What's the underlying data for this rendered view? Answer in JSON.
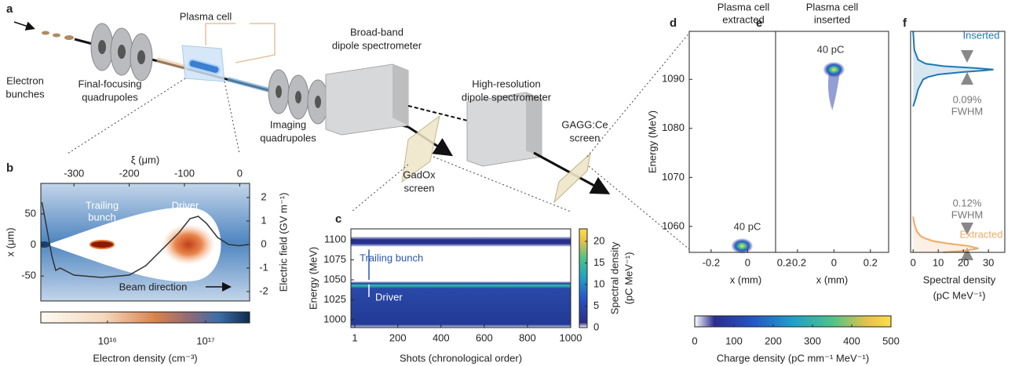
{
  "diagram": {
    "label": "a",
    "components": [
      {
        "label": [
          "Electron",
          "bunches"
        ]
      },
      {
        "label": [
          "Final-focusing",
          "quadrupoles"
        ]
      },
      {
        "label": [
          "Plasma cell"
        ]
      },
      {
        "label": [
          "Imaging",
          "quadrupoles"
        ]
      },
      {
        "label": [
          "Broad-band",
          "dipole spectrometer"
        ]
      },
      {
        "label": [
          "High-resolution",
          "dipole spectrometer"
        ]
      },
      {
        "label": [
          "GadOx",
          "screen"
        ]
      },
      {
        "label": [
          "GAGG:Ce",
          "screen"
        ]
      }
    ]
  },
  "chart_data": [
    {
      "panel": "b",
      "type": "line",
      "xlabel": "ξ (μm)",
      "ylabel": "x (μm)",
      "y2label": "Electric field (GV m⁻¹)",
      "x": [
        -358,
        -350,
        -340,
        -333,
        -325,
        -300,
        -250,
        -200,
        -170,
        -140,
        -110,
        -90,
        -75,
        -60,
        -40,
        -20,
        0,
        15
      ],
      "series": [
        {
          "color": "#333333",
          "axis": "y2",
          "values": [
            1.8,
            0.8,
            -0.5,
            -1.1,
            -1.0,
            -1.3,
            -1.4,
            -1.3,
            -0.9,
            -0.2,
            0.5,
            1.1,
            1.2,
            0.9,
            0.3,
            0.0,
            -0.05,
            0.0
          ]
        }
      ],
      "xlim": [
        -360,
        18
      ],
      "xticks": [
        -300,
        -200,
        -100,
        0
      ],
      "ylim": [
        -90,
        99
      ],
      "yticks": [
        -50,
        0,
        50
      ],
      "y2lim": [
        -2.4,
        2.6
      ],
      "y2ticks": [
        -2,
        -1,
        0,
        1,
        2
      ],
      "annotations": [
        [
          "Trailing",
          "bunch"
        ],
        [
          "Driver"
        ],
        [
          "Beam direction"
        ]
      ],
      "colorbar": {
        "label": "Electron density (cm⁻³)",
        "log": true,
        "clim": [
          2100000000000000.0,
          2.8e+17
        ],
        "ticks": [
          {
            "value": 1e+16,
            "label": "10¹⁶"
          },
          {
            "value": 1e+17,
            "label": "10¹⁷"
          }
        ]
      }
    },
    {
      "panel": "c",
      "type": "heatmap",
      "xlabel": "Shots (chronological order)",
      "ylabel": "Energy (MeV)",
      "xlim": [
        -17,
        1000
      ],
      "xticks": [
        1,
        200,
        400,
        600,
        800,
        1000
      ],
      "ylim": [
        990,
        1114
      ],
      "yticks": [
        1000,
        1025,
        1050,
        1075,
        1100
      ],
      "bands": [
        {
          "label": "Trailing bunch",
          "range": [
            1092,
            1104
          ]
        },
        {
          "label": "Driver",
          "range": [
            990,
            1048
          ]
        }
      ],
      "colorbar": {
        "label": [
          "Spectral density",
          "(pC MeV⁻¹)"
        ],
        "clim": [
          0,
          22.9
        ],
        "ticks": [
          0,
          5,
          10,
          15,
          20
        ]
      }
    },
    {
      "panel": "d",
      "type": "heatmap",
      "title": [
        "Plasma cell",
        "extracted"
      ],
      "xlabel": "x (mm)",
      "ylabel": "Energy (MeV)",
      "xlim": [
        -0.32,
        0.3
      ],
      "xticks": [
        -0.2,
        0,
        0.2
      ],
      "ylim": [
        1054.7,
        1099.8
      ],
      "yticks": [
        1060,
        1070,
        1080,
        1090
      ],
      "centroid": {
        "x": -0.03,
        "y": 1056
      },
      "annotations": [
        [
          "40 pC"
        ]
      ],
      "colorbar": {
        "label": "Charge density (pC mm⁻¹ MeV⁻¹)",
        "clim": [
          0,
          500
        ],
        "ticks": [
          0,
          100,
          200,
          300,
          400,
          500
        ]
      }
    },
    {
      "panel": "e",
      "type": "heatmap",
      "title": [
        "Plasma cell",
        "inserted"
      ],
      "xlabel": "x (mm)",
      "xlim": [
        -0.32,
        0.3
      ],
      "xticks": [
        -0.2,
        0,
        0.2
      ],
      "ylim": [
        1054.7,
        1099.8
      ],
      "centroid": {
        "x": 0.0,
        "y": 1092
      },
      "annotations": [
        [
          "40 pC"
        ]
      ]
    },
    {
      "panel": "f",
      "type": "line",
      "orientation": "horizontal",
      "xlabel": [
        "Spectral density",
        "(pC MeV⁻¹)"
      ],
      "xlim": [
        -1,
        36.5
      ],
      "xticks": [
        0,
        10,
        20,
        30
      ],
      "ylim": [
        1054.7,
        1099.8
      ],
      "series": [
        {
          "name": "Inserted",
          "color": "#1f78b4",
          "y": [
            1084.5,
            1086,
            1088,
            1089,
            1090,
            1090.5,
            1091,
            1091.5,
            1091.8,
            1092,
            1092.3,
            1092.7,
            1093.2,
            1094,
            1096,
            1099.8
          ],
          "values": [
            0,
            1,
            2,
            3,
            4,
            6,
            10,
            20,
            28,
            32,
            25,
            12,
            5,
            2,
            0.5,
            0
          ]
        },
        {
          "name": "Extracted",
          "color": "#f0a868",
          "y": [
            1054.7,
            1055,
            1055.5,
            1056,
            1056.5,
            1057,
            1057.5,
            1058,
            1059,
            1060,
            1061,
            1062
          ],
          "values": [
            12,
            20,
            26,
            22,
            14,
            8,
            5,
            3,
            1.5,
            0.8,
            0.3,
            0
          ]
        }
      ],
      "annotations": [
        [
          "0.09%",
          "FWHM"
        ],
        [
          "0.12%",
          "FWHM"
        ]
      ]
    }
  ]
}
